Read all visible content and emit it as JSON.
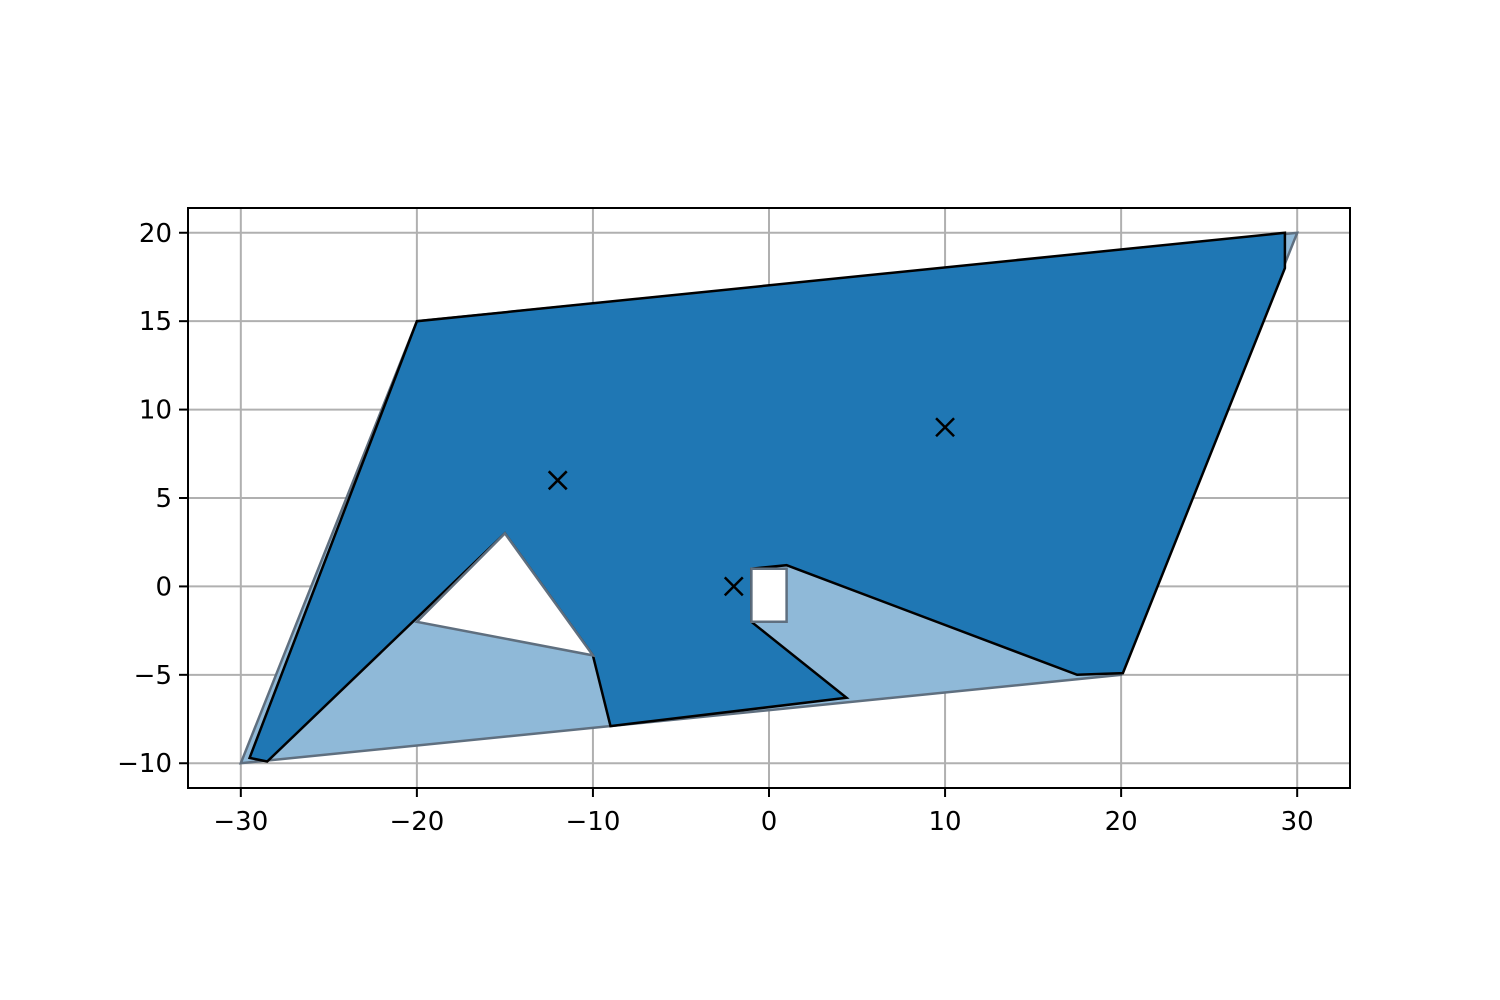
{
  "chart_data": {
    "type": "area",
    "title": "",
    "xlabel": "",
    "ylabel": "",
    "xlim": [
      -33,
      33
    ],
    "ylim": [
      -11.4,
      21.4
    ],
    "xticks": [
      -30,
      -20,
      -10,
      0,
      10,
      20,
      30
    ],
    "yticks": [
      -10,
      -5,
      0,
      5,
      10,
      15,
      20
    ],
    "x_tick_labels": [
      "−30",
      "−20",
      "−10",
      "0",
      "10",
      "20",
      "30"
    ],
    "y_tick_labels": [
      "−10",
      "−5",
      "0",
      "5",
      "10",
      "15",
      "20"
    ],
    "grid": true,
    "legend": "none",
    "colors": {
      "dark_fill": "#1f77b4",
      "light_fill": "#8fb9d8",
      "light_edge": "#5f6f7f",
      "outline": "#000000",
      "grid": "#b0b0b0",
      "background": "#ffffff"
    },
    "regions": [
      {
        "role": "outer-region",
        "fill": "light",
        "points": [
          [
            -30,
            -10
          ],
          [
            -20,
            15
          ],
          [
            30,
            20
          ],
          [
            20,
            -5
          ]
        ]
      },
      {
        "role": "region",
        "fill": "dark",
        "points": [
          [
            -29.5,
            -9.7
          ],
          [
            -20,
            15
          ],
          [
            29.3,
            20
          ],
          [
            29.3,
            18
          ],
          [
            20.1,
            -4.9
          ],
          [
            17.5,
            -5
          ],
          [
            1,
            1.2
          ],
          [
            -1,
            1
          ],
          [
            -1,
            -2
          ],
          [
            4.4,
            -6.3
          ],
          [
            -9,
            -7.9
          ],
          [
            -10,
            -3.9
          ],
          [
            -15,
            3
          ],
          [
            -28.5,
            -9.9
          ]
        ]
      },
      {
        "role": "hole",
        "fill": "background",
        "points": [
          [
            -15,
            3
          ],
          [
            -20,
            -2
          ],
          [
            -10,
            -3.9
          ]
        ]
      },
      {
        "role": "hole",
        "fill": "background",
        "points": [
          [
            -1,
            1
          ],
          [
            1,
            1
          ],
          [
            1,
            -2
          ],
          [
            -1,
            -2
          ]
        ]
      }
    ],
    "markers": [
      {
        "shape": "x",
        "x": -12,
        "y": 6
      },
      {
        "shape": "x",
        "x": 10,
        "y": 9
      },
      {
        "shape": "x",
        "x": -2,
        "y": 0
      }
    ]
  }
}
